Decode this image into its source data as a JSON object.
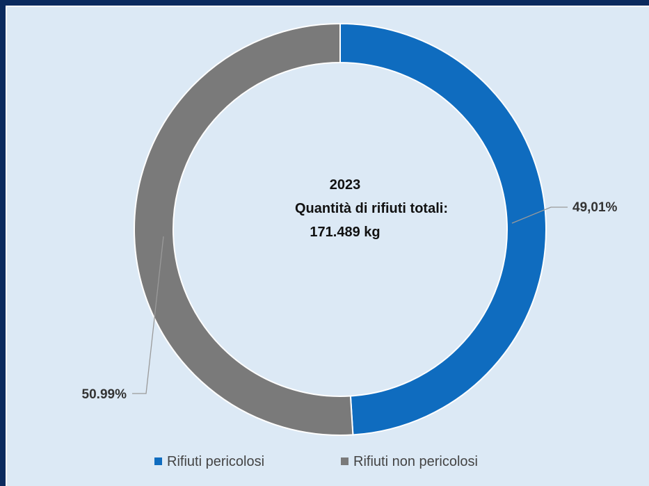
{
  "chart_data": {
    "type": "pie",
    "donut": true,
    "center_text": [
      "2023",
      "Quantità di rifiuti totali:",
      "171.489 kg"
    ],
    "slices": [
      {
        "name": "Rifiuti pericolosi",
        "value": 49.01,
        "label": "49,01%",
        "color": "#0f6cbf"
      },
      {
        "name": "Rifiuti non pericolosi",
        "value": 50.99,
        "label": "50.99%",
        "color": "#7a7a7a"
      }
    ],
    "legend_position": "bottom"
  }
}
